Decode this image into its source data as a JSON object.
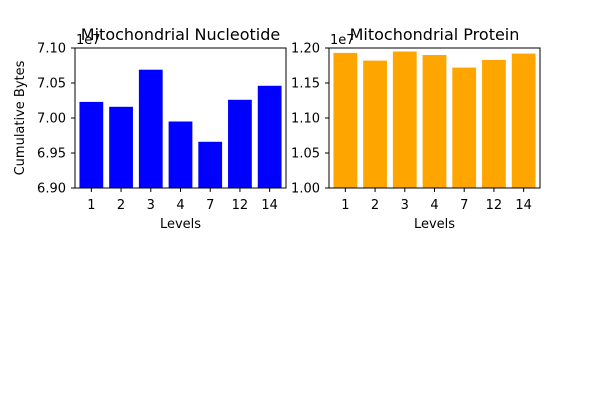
{
  "chart_data": [
    {
      "type": "bar",
      "title": "Mitochondrial Nucleotide",
      "xlabel": "Levels",
      "ylabel": "Cumulative Bytes",
      "categories": [
        "1",
        "2",
        "3",
        "4",
        "7",
        "12",
        "14"
      ],
      "values": [
        70230000,
        70160000,
        70690000,
        69950000,
        69660000,
        70260000,
        70460000
      ],
      "ylim": [
        69000000,
        71000000
      ],
      "yticks": [
        "6.90",
        "6.95",
        "7.00",
        "7.05",
        "7.10"
      ],
      "offset_text": "1e7",
      "color": "#0000ff",
      "grid": false,
      "legend": "none"
    },
    {
      "type": "bar",
      "title": "Mitochondrial Protein",
      "xlabel": "Levels",
      "ylabel": "",
      "categories": [
        "1",
        "2",
        "3",
        "4",
        "7",
        "12",
        "14"
      ],
      "values": [
        11930000,
        11820000,
        11950000,
        11900000,
        11720000,
        11830000,
        11920000
      ],
      "ylim": [
        10000000,
        12000000
      ],
      "yticks": [
        "1.00",
        "1.05",
        "1.10",
        "1.15",
        "1.20"
      ],
      "offset_text": "1e7",
      "color": "#ffa500",
      "grid": false,
      "legend": "none"
    }
  ]
}
